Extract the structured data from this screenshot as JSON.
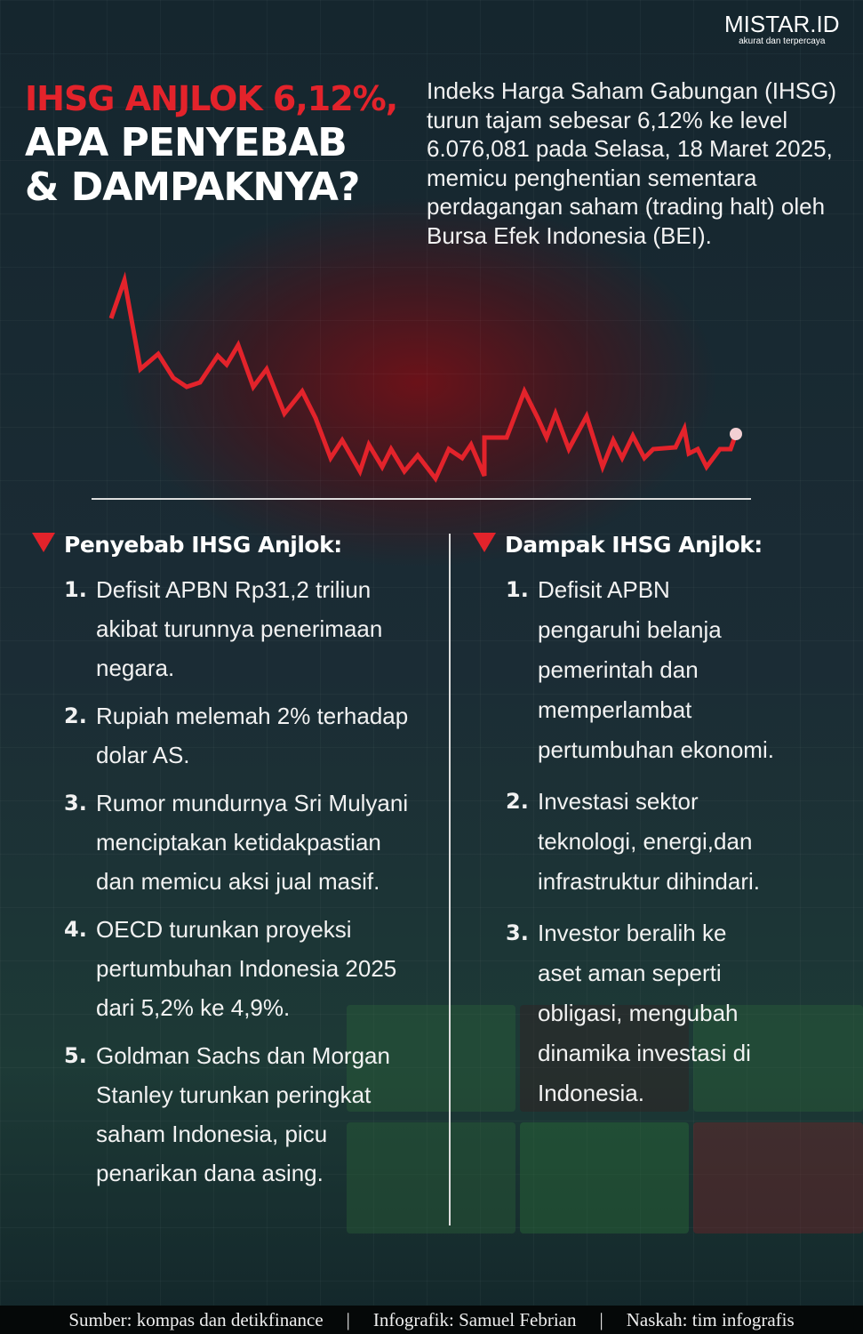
{
  "logo": {
    "name": "MISTAR.ID",
    "tagline": "akurat dan terpercaya"
  },
  "title": {
    "line1": "IHSG ANJLOK 6,12%,",
    "line2": "APA PENYEBAB",
    "line3": "& DAMPAKNYA?"
  },
  "intro": "Indeks Harga Saham Gabungan (IHSG) turun tajam sebesar 6,12% ke level 6.076,081 pada Selasa, 18 Maret 2025, memicu penghentian sementara perdagangan saham (trading halt) oleh Bursa Efek Indonesia (BEI).",
  "colors": {
    "accent": "#e3232b",
    "line": "#e3232b"
  },
  "causes": {
    "heading": "Penyebab IHSG Anjlok:",
    "items": [
      {
        "n": "1.",
        "text": "Defisit APBN Rp31,2 triliun akibat turunnya penerimaan negara."
      },
      {
        "n": "2.",
        "text": "Rupiah melemah 2% terhadap dolar AS."
      },
      {
        "n": "3.",
        "text": "Rumor mundurnya Sri Mulyani menciptakan ketidakpastian dan memicu aksi jual masif."
      },
      {
        "n": "4.",
        "text": "OECD turunkan proyeksi pertumbuhan Indonesia 2025 dari 5,2% ke 4,9%."
      },
      {
        "n": "5.",
        "text": "Goldman Sachs dan Morgan Stanley turunkan peringkat saham Indonesia, picu penarikan dana asing."
      }
    ]
  },
  "impacts": {
    "heading": "Dampak IHSG Anjlok:",
    "items": [
      {
        "n": "1.",
        "text": "Defisit APBN pengaruhi belanja pemerintah dan memperlambat pertumbuhan ekonomi."
      },
      {
        "n": "2.",
        "text": "Investasi sektor teknologi, energi,dan infrastruktur dihindari."
      },
      {
        "n": "3.",
        "text": "Investor beralih ke aset aman seperti obligasi, mengubah dinamika investasi di Indonesia."
      }
    ]
  },
  "footer": {
    "source": "Sumber: kompas dan detikfinance",
    "sep": "|",
    "graphic": "Infografik: Samuel Febrian",
    "script": "Naskah: tim infografis"
  }
}
